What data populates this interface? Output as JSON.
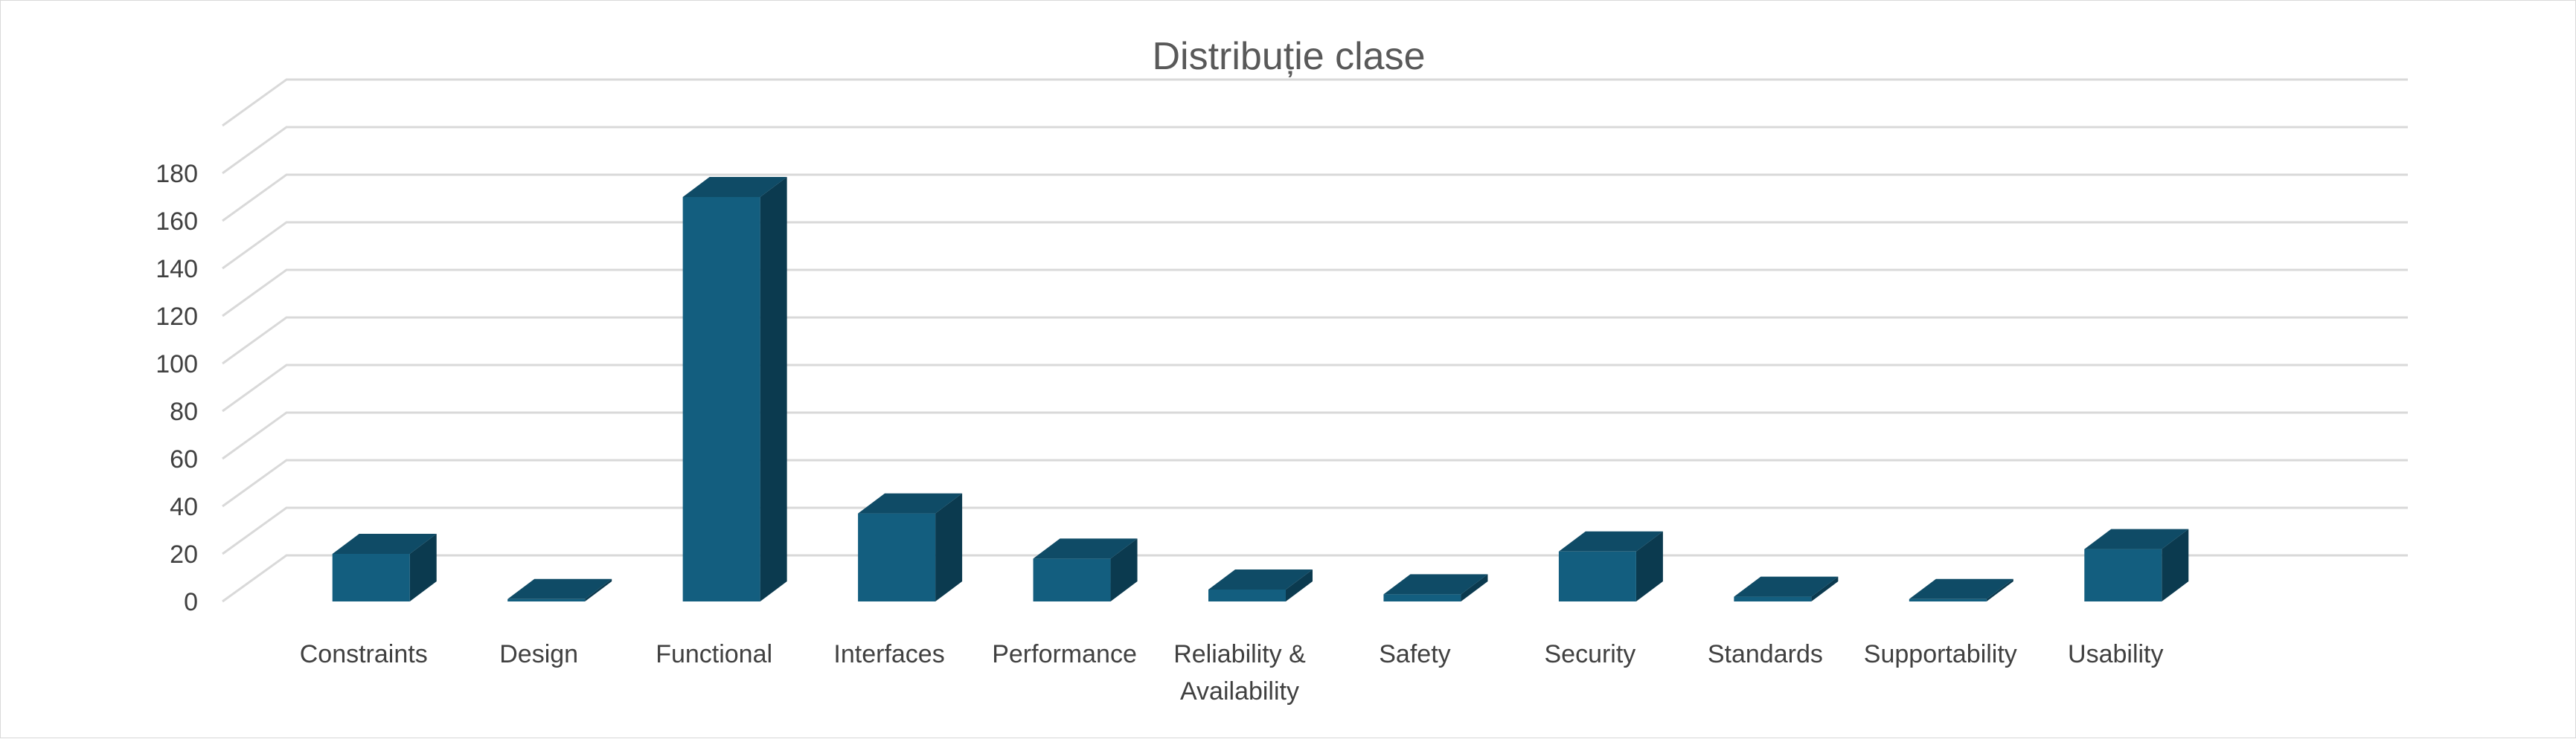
{
  "chart_data": {
    "type": "bar",
    "title": "Distribuție clase",
    "xlabel": "",
    "ylabel": "",
    "categories": [
      "Constraints",
      "Design",
      "Functional",
      "Interfaces",
      "Performance",
      "Reliability & Availability",
      "Safety",
      "Security",
      "Standards",
      "Supportability",
      "Usability"
    ],
    "category_lines": [
      [
        "Constraints"
      ],
      [
        "Design"
      ],
      [
        "Functional"
      ],
      [
        "Interfaces"
      ],
      [
        "Performance"
      ],
      [
        "Reliability &",
        "Availability"
      ],
      [
        "Safety"
      ],
      [
        "Security"
      ],
      [
        "Standards"
      ],
      [
        "Supportability"
      ],
      [
        "Usability"
      ]
    ],
    "values": [
      20,
      1,
      170,
      37,
      18,
      5,
      3,
      21,
      2,
      1,
      22
    ],
    "ylim": [
      0,
      180
    ],
    "yticks": [
      0,
      20,
      40,
      60,
      80,
      100,
      120,
      140,
      160,
      180
    ],
    "grid": true,
    "legend": "none",
    "style": "3d-column",
    "colors": {
      "front": "#135e7f",
      "side": "#0b3a4f",
      "top": "#0f4b66",
      "grid": "#d9d9d9"
    }
  }
}
